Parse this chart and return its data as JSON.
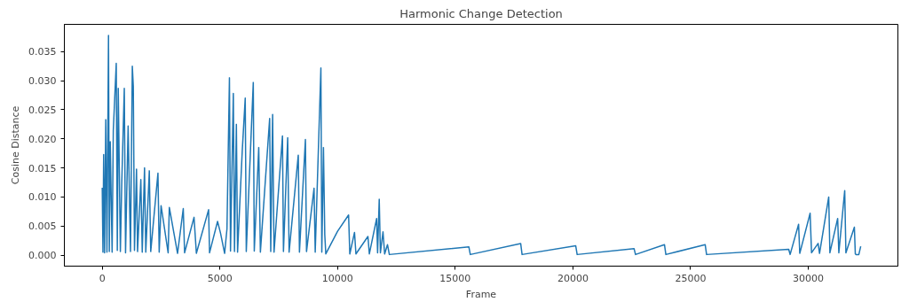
{
  "chart_data": {
    "type": "line",
    "title": "Harmonic Change Detection",
    "xlabel": "Frame",
    "ylabel": "Cosine Distance",
    "x": [
      0,
      30,
      60,
      100,
      150,
      200,
      266,
      300,
      340,
      420,
      470,
      595,
      640,
      680,
      770,
      830,
      937,
      990,
      1100,
      1200,
      1278,
      1320,
      1370,
      1456,
      1500,
      1640,
      1700,
      1797,
      1850,
      2000,
      2060,
      2367,
      2420,
      2500,
      2800,
      2850,
      3200,
      3443,
      3500,
      3900,
      4000,
      4519,
      4560,
      4900,
      5025,
      5200,
      5300,
      5405,
      5450,
      5570,
      5620,
      5700,
      5750,
      5950,
      6076,
      6120,
      6418,
      6460,
      6650,
      6720,
      7114,
      7160,
      7240,
      7300,
      7658,
      7700,
      7880,
      7940,
      8330,
      8380,
      8633,
      8680,
      9000,
      9050,
      9291,
      9330,
      9400,
      9456,
      9500,
      10000,
      10468,
      10520,
      10720,
      10780,
      11290,
      11350,
      11660,
      11700,
      11770,
      11820,
      11930,
      12000,
      12120,
      12200,
      15580,
      15640,
      17780,
      17840,
      20120,
      20180,
      22600,
      22660,
      23890,
      23950,
      25620,
      25680,
      29170,
      29230,
      29590,
      29640,
      30080,
      30140,
      30420,
      30480,
      30870,
      30920,
      31250,
      31300,
      31550,
      31600,
      31960,
      32000,
      32030,
      32150,
      32230
    ],
    "series": [
      {
        "color": "#1f77b4",
        "values": [
          0.0116,
          0.0005,
          0.0173,
          0.0004,
          0.0233,
          0.0005,
          0.0378,
          0.0006,
          0.0195,
          0.0005,
          0.0215,
          0.033,
          0.0008,
          0.0287,
          0.0006,
          0.0125,
          0.0287,
          0.0004,
          0.0222,
          0.0006,
          0.0325,
          0.029,
          0.0008,
          0.0148,
          0.0006,
          0.013,
          0.0005,
          0.015,
          0.0005,
          0.0145,
          0.0006,
          0.0141,
          0.0005,
          0.0085,
          0.0004,
          0.0082,
          0.0003,
          0.008,
          0.0004,
          0.0065,
          0.0003,
          0.0078,
          0.0004,
          0.0058,
          0.0038,
          0.0003,
          0.0045,
          0.0305,
          0.0007,
          0.0278,
          0.0006,
          0.0225,
          0.0005,
          0.018,
          0.027,
          0.0006,
          0.0297,
          0.0007,
          0.0185,
          0.0005,
          0.0235,
          0.0006,
          0.0242,
          0.0005,
          0.0205,
          0.0006,
          0.0202,
          0.0005,
          0.0172,
          0.0005,
          0.0199,
          0.0006,
          0.0115,
          0.0005,
          0.0322,
          0.0005,
          0.0185,
          0.0035,
          0.0002,
          0.0041,
          0.0069,
          0.0002,
          0.0039,
          0.0002,
          0.0032,
          0.0002,
          0.0063,
          0.0004,
          0.0096,
          0.0004,
          0.004,
          0.0002,
          0.0018,
          0.0001,
          0.0014,
          0.0001,
          0.002,
          0.0001,
          0.0016,
          0.0001,
          0.0011,
          0.0001,
          0.0018,
          0.0001,
          0.0018,
          0.0001,
          0.001,
          0.0001,
          0.0053,
          0.0003,
          0.0072,
          0.0004,
          0.002,
          0.0003,
          0.01,
          0.0004,
          0.0063,
          0.0004,
          0.0111,
          0.0004,
          0.0048,
          0.0002,
          0.0001,
          0.0001,
          0.0015
        ]
      }
    ],
    "xlim": [
      -1610,
      33810
    ],
    "ylim": [
      -0.0019,
      0.0397
    ],
    "xticks": [
      0,
      5000,
      10000,
      15000,
      20000,
      25000,
      30000
    ],
    "yticks": [
      {
        "value": 0,
        "label": "0.000"
      },
      {
        "value": 0.005,
        "label": "0.005"
      },
      {
        "value": 0.01,
        "label": "0.010"
      },
      {
        "value": 0.015,
        "label": "0.015"
      },
      {
        "value": 0.02,
        "label": "0.020"
      },
      {
        "value": 0.025,
        "label": "0.025"
      },
      {
        "value": 0.03,
        "label": "0.030"
      },
      {
        "value": 0.035,
        "label": "0.035"
      }
    ],
    "grid": false,
    "marker": "none",
    "line_style": "solid"
  }
}
